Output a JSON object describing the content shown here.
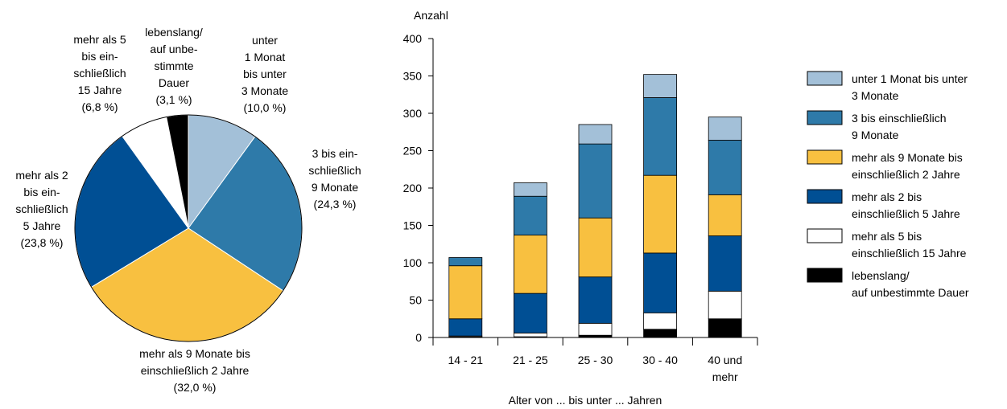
{
  "colors": {
    "lightblue": "#a3c0d8",
    "midblue": "#2e7aa9",
    "yellow": "#f8c040",
    "darkblue": "#004f94",
    "white": "#ffffff",
    "black": "#000000"
  },
  "chart_data": [
    {
      "type": "pie",
      "title": "",
      "slices": [
        {
          "key": "unter1",
          "value": 10.0,
          "color": "#a3c0d8",
          "label": [
            "unter",
            "1 Monat",
            "bis unter",
            "3 Monate",
            "(10,0 %)"
          ]
        },
        {
          "key": "3bis9",
          "value": 24.3,
          "color": "#2e7aa9",
          "label": [
            "3 bis ein-",
            "schließlich",
            "9 Monate",
            "(24,3 %)"
          ]
        },
        {
          "key": "9mbis2j",
          "value": 32.0,
          "color": "#f8c040",
          "label": [
            "mehr als 9 Monate bis",
            "einschließlich 2 Jahre",
            "(32,0 %)"
          ]
        },
        {
          "key": "2bis5",
          "value": 23.8,
          "color": "#004f94",
          "label": [
            "mehr als 2",
            "bis ein-",
            "schließlich",
            "5 Jahre",
            "(23,8 %)"
          ]
        },
        {
          "key": "5bis15",
          "value": 6.8,
          "color": "#ffffff",
          "label": [
            "mehr als 5",
            "bis ein-",
            "schließlich",
            "15 Jahre",
            "(6,8 %)"
          ]
        },
        {
          "key": "lebenslang",
          "value": 3.1,
          "color": "#000000",
          "label": [
            "lebenslang/",
            "auf unbe-",
            "stimmte",
            "Dauer",
            "(3,1 %)"
          ]
        }
      ]
    },
    {
      "type": "bar",
      "stacked": true,
      "ylabel": "Anzahl",
      "xlabel": "Alter von ... bis unter ... Jahren",
      "ylim": [
        0,
        400
      ],
      "yticks": [
        "0",
        "50",
        "100",
        "150",
        "200",
        "250",
        "300",
        "350",
        "400"
      ],
      "categories": [
        [
          "14 - 21"
        ],
        [
          "21 - 25"
        ],
        [
          "25 - 30"
        ],
        [
          "30 - 40"
        ],
        [
          "40 und",
          "mehr"
        ]
      ],
      "series": [
        {
          "name": "lebenslang/ auf unbestimmte Dauer",
          "legend": [
            "lebenslang/",
            "auf unbestimmte Dauer"
          ],
          "color": "#000000",
          "values": [
            1,
            1,
            3,
            11,
            25
          ]
        },
        {
          "name": "mehr als 5 bis einschließlich 15 Jahre",
          "legend": [
            "mehr als 5 bis",
            "einschließlich 15 Jahre"
          ],
          "color": "#ffffff",
          "values": [
            1,
            5,
            16,
            22,
            37
          ]
        },
        {
          "name": "mehr als 2 bis einschließlich 5 Jahre",
          "legend": [
            "mehr als 2 bis",
            "einschließlich 5 Jahre"
          ],
          "color": "#004f94",
          "values": [
            23,
            53,
            62,
            80,
            74
          ]
        },
        {
          "name": "mehr als 9 Monate bis einschließlich 2 Jahre",
          "legend": [
            "mehr als 9 Monate bis",
            "einschließlich 2 Jahre"
          ],
          "color": "#f8c040",
          "values": [
            71,
            78,
            79,
            104,
            55
          ]
        },
        {
          "name": "3 bis einschließlich 9 Monate",
          "legend": [
            "3 bis einschließlich",
            "9 Monate"
          ],
          "color": "#2e7aa9",
          "values": [
            11,
            52,
            99,
            104,
            73
          ]
        },
        {
          "name": "unter 1 Monat bis unter 3 Monate",
          "legend": [
            "unter 1 Monat bis unter",
            "3 Monate"
          ],
          "color": "#a3c0d8",
          "values": [
            0,
            18,
            26,
            31,
            31
          ]
        }
      ],
      "legend_order": [
        5,
        4,
        3,
        2,
        1,
        0
      ],
      "legend_position": "right"
    }
  ]
}
